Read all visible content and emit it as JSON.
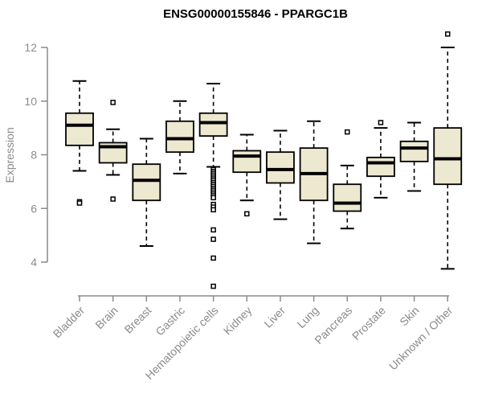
{
  "chart_data": {
    "type": "boxplot",
    "title": "ENSG00000155846 - PPARGC1B",
    "xlabel": "",
    "ylabel": "Expression",
    "ylim": [
      4,
      12
    ],
    "yticks": [
      4,
      6,
      8,
      10,
      12
    ],
    "grid": false,
    "legend": "none",
    "box_fill_color": "#EDE8D0",
    "box_stroke_color": "#000000",
    "axis_color": "#8a8a8a",
    "categories": [
      "Bladder",
      "Brain",
      "Breast",
      "Gastric",
      "Hematopoietic cells",
      "Kidney",
      "Liver",
      "Lung",
      "Pancreas",
      "Prostate",
      "Skin",
      "Unknown / Other"
    ],
    "series": [
      {
        "category": "Bladder",
        "whisker_low": 7.4,
        "q1": 8.35,
        "median": 9.1,
        "q3": 9.55,
        "whisker_high": 10.75,
        "outliers": [
          6.25,
          6.2
        ]
      },
      {
        "category": "Brain",
        "whisker_low": 7.25,
        "q1": 7.7,
        "median": 8.3,
        "q3": 8.45,
        "whisker_high": 8.95,
        "outliers": [
          9.95,
          6.35
        ]
      },
      {
        "category": "Breast",
        "whisker_low": 4.6,
        "q1": 6.3,
        "median": 7.05,
        "q3": 7.65,
        "whisker_high": 8.6,
        "outliers": []
      },
      {
        "category": "Gastric",
        "whisker_low": 7.3,
        "q1": 8.1,
        "median": 8.6,
        "q3": 9.25,
        "whisker_high": 10.0,
        "outliers": []
      },
      {
        "category": "Hematopoietic cells",
        "whisker_low": 7.55,
        "q1": 8.7,
        "median": 9.2,
        "q3": 9.55,
        "whisker_high": 10.65,
        "outliers": [
          7.45,
          7.38,
          7.31,
          7.24,
          7.17,
          7.1,
          7.03,
          6.96,
          6.89,
          6.82,
          6.75,
          6.68,
          6.61,
          6.54,
          6.47,
          6.4,
          6.15,
          6.05,
          5.95,
          5.2,
          4.85,
          4.15,
          3.1
        ]
      },
      {
        "category": "Kidney",
        "whisker_low": 6.3,
        "q1": 7.35,
        "median": 7.95,
        "q3": 8.15,
        "whisker_high": 8.75,
        "outliers": [
          5.8
        ]
      },
      {
        "category": "Liver",
        "whisker_low": 5.6,
        "q1": 6.95,
        "median": 7.45,
        "q3": 8.1,
        "whisker_high": 8.9,
        "outliers": []
      },
      {
        "category": "Lung",
        "whisker_low": 4.7,
        "q1": 6.3,
        "median": 7.3,
        "q3": 8.25,
        "whisker_high": 9.25,
        "outliers": []
      },
      {
        "category": "Pancreas",
        "whisker_low": 5.25,
        "q1": 5.9,
        "median": 6.2,
        "q3": 6.9,
        "whisker_high": 7.6,
        "outliers": [
          8.85
        ]
      },
      {
        "category": "Prostate",
        "whisker_low": 6.4,
        "q1": 7.2,
        "median": 7.7,
        "q3": 7.9,
        "whisker_high": 9.0,
        "outliers": [
          9.2
        ]
      },
      {
        "category": "Skin",
        "whisker_low": 6.65,
        "q1": 7.75,
        "median": 8.25,
        "q3": 8.5,
        "whisker_high": 9.2,
        "outliers": []
      },
      {
        "category": "Unknown / Other",
        "whisker_low": 3.75,
        "q1": 6.9,
        "median": 7.85,
        "q3": 9.0,
        "whisker_high": 12.0,
        "outliers": [
          12.5
        ]
      }
    ]
  }
}
